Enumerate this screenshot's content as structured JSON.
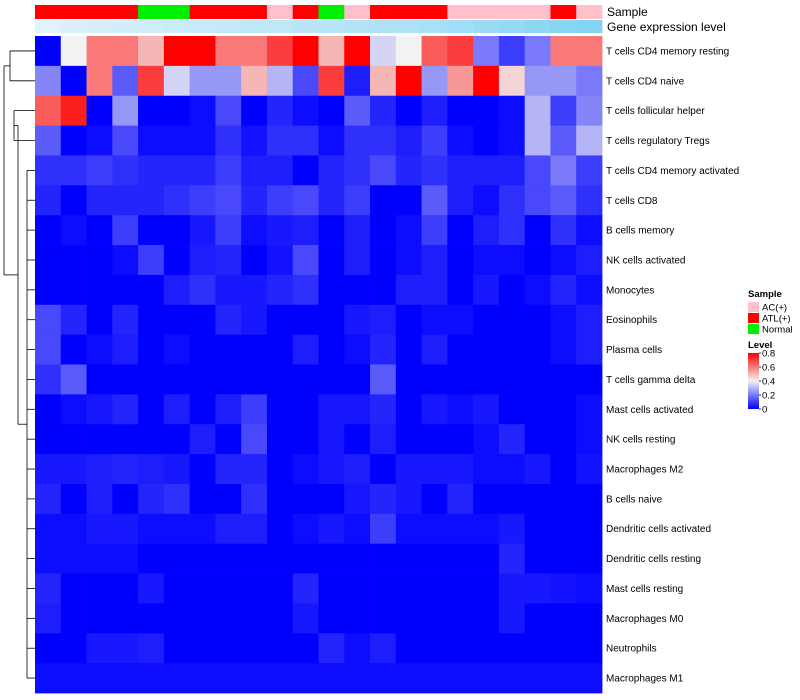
{
  "chart_data": {
    "type": "heatmap",
    "annotation_labels": {
      "sample": "Sample",
      "gene_expression": "Gene expression level"
    },
    "rows": [
      "T cells CD4 memory resting",
      "T cells CD4 naive",
      "T cells follicular helper",
      "T cells regulatory  Tregs",
      "T cells CD4 memory activated",
      "T cells CD8",
      "B cells memory",
      "NK cells activated",
      "Monocytes",
      "Eosinophils",
      "Plasma cells",
      "T cells gamma delta",
      "Mast cells activated",
      "NK cells resting",
      "Macrophages M2",
      "B cells naive",
      "Dendritic cells activated",
      "Dendritic cells resting",
      "Mast cells resting",
      "Macrophages M0",
      "Neutrophils",
      "Macrophages M1"
    ],
    "sample_groups": [
      "ATL(+)",
      "ATL(+)",
      "ATL(+)",
      "ATL(+)",
      "Normal",
      "Normal",
      "ATL(+)",
      "ATL(+)",
      "ATL(+)",
      "AC(+)",
      "ATL(+)",
      "Normal",
      "AC(+)",
      "ATL(+)",
      "ATL(+)",
      "ATL(+)",
      "AC(+)",
      "AC(+)",
      "AC(+)",
      "AC(+)",
      "ATL(+)",
      "AC(+)"
    ],
    "expression_annotation": [
      0.05,
      0.08,
      0.12,
      0.15,
      0.18,
      0.2,
      0.22,
      0.25,
      0.28,
      0.3,
      0.33,
      0.35,
      0.38,
      0.4,
      0.43,
      0.46,
      0.5,
      0.55,
      0.6,
      0.65,
      0.7,
      0.72
    ],
    "values": [
      [
        0.0,
        0.4,
        0.6,
        0.6,
        0.5,
        0.8,
        0.8,
        0.6,
        0.6,
        0.7,
        0.8,
        0.5,
        0.8,
        0.35,
        0.4,
        0.65,
        0.7,
        0.2,
        0.1,
        0.2,
        0.6,
        0.6
      ],
      [
        0.22,
        0.0,
        0.6,
        0.15,
        0.7,
        0.35,
        0.25,
        0.25,
        0.5,
        0.3,
        0.12,
        0.7,
        0.05,
        0.5,
        0.8,
        0.25,
        0.55,
        0.8,
        0.45,
        0.25,
        0.25,
        0.2
      ],
      [
        0.65,
        0.75,
        0.0,
        0.25,
        0.0,
        0.0,
        0.02,
        0.12,
        0.0,
        0.06,
        0.02,
        0.0,
        0.15,
        0.06,
        0.0,
        0.05,
        0.0,
        0.0,
        0.02,
        0.3,
        0.1,
        0.22
      ],
      [
        0.15,
        0.0,
        0.02,
        0.12,
        0.02,
        0.02,
        0.02,
        0.08,
        0.03,
        0.08,
        0.08,
        0.02,
        0.08,
        0.08,
        0.05,
        0.1,
        0.02,
        0.0,
        0.02,
        0.3,
        0.15,
        0.3
      ],
      [
        0.08,
        0.08,
        0.1,
        0.08,
        0.06,
        0.06,
        0.06,
        0.1,
        0.05,
        0.05,
        0.0,
        0.06,
        0.08,
        0.12,
        0.06,
        0.08,
        0.05,
        0.05,
        0.05,
        0.12,
        0.2,
        0.1
      ],
      [
        0.06,
        0.0,
        0.06,
        0.06,
        0.06,
        0.08,
        0.1,
        0.12,
        0.06,
        0.1,
        0.12,
        0.06,
        0.1,
        0.0,
        0.0,
        0.15,
        0.05,
        0.02,
        0.08,
        0.12,
        0.15,
        0.08
      ],
      [
        0.0,
        0.02,
        0.0,
        0.1,
        0.0,
        0.0,
        0.04,
        0.1,
        0.02,
        0.04,
        0.05,
        0.0,
        0.05,
        0.0,
        0.02,
        0.1,
        0.0,
        0.05,
        0.08,
        0.0,
        0.08,
        0.02
      ],
      [
        0.0,
        0.0,
        0.0,
        0.02,
        0.1,
        0.0,
        0.05,
        0.06,
        0.0,
        0.03,
        0.12,
        0.0,
        0.05,
        0.0,
        0.02,
        0.05,
        0.0,
        0.02,
        0.02,
        0.0,
        0.02,
        0.05
      ],
      [
        0.0,
        0.0,
        0.0,
        0.0,
        0.0,
        0.05,
        0.08,
        0.04,
        0.04,
        0.06,
        0.08,
        0.0,
        0.0,
        0.0,
        0.05,
        0.05,
        0.0,
        0.04,
        0.0,
        0.02,
        0.06,
        0.02
      ],
      [
        0.12,
        0.06,
        0.0,
        0.06,
        0.0,
        0.0,
        0.0,
        0.06,
        0.04,
        0.0,
        0.0,
        0.0,
        0.04,
        0.05,
        0.0,
        0.02,
        0.02,
        0.0,
        0.0,
        0.0,
        0.02,
        0.05
      ],
      [
        0.12,
        0.0,
        0.02,
        0.05,
        0.0,
        0.02,
        0.0,
        0.0,
        0.0,
        0.0,
        0.05,
        0.0,
        0.02,
        0.06,
        0.0,
        0.05,
        0.0,
        0.0,
        0.0,
        0.0,
        0.02,
        0.05
      ],
      [
        0.08,
        0.15,
        0.0,
        0.0,
        0.0,
        0.0,
        0.0,
        0.0,
        0.0,
        0.0,
        0.0,
        0.0,
        0.0,
        0.15,
        0.0,
        0.0,
        0.0,
        0.0,
        0.0,
        0.0,
        0.0,
        0.0
      ],
      [
        0.0,
        0.02,
        0.04,
        0.06,
        0.0,
        0.05,
        0.0,
        0.05,
        0.1,
        0.0,
        0.0,
        0.04,
        0.04,
        0.06,
        0.0,
        0.04,
        0.02,
        0.04,
        0.0,
        0.0,
        0.0,
        0.02
      ],
      [
        0.0,
        0.0,
        0.0,
        0.0,
        0.0,
        0.0,
        0.05,
        0.0,
        0.12,
        0.0,
        0.0,
        0.04,
        0.0,
        0.05,
        0.0,
        0.0,
        0.0,
        0.02,
        0.06,
        0.0,
        0.0,
        0.02
      ],
      [
        0.04,
        0.04,
        0.05,
        0.06,
        0.05,
        0.04,
        0.0,
        0.06,
        0.06,
        0.0,
        0.02,
        0.04,
        0.05,
        0.0,
        0.04,
        0.04,
        0.04,
        0.02,
        0.02,
        0.04,
        0.0,
        0.03
      ],
      [
        0.06,
        0.0,
        0.05,
        0.0,
        0.06,
        0.08,
        0.0,
        0.0,
        0.08,
        0.0,
        0.0,
        0.0,
        0.04,
        0.06,
        0.04,
        0.0,
        0.06,
        0.0,
        0.0,
        0.0,
        0.0,
        0.0
      ],
      [
        0.02,
        0.02,
        0.04,
        0.04,
        0.02,
        0.02,
        0.02,
        0.05,
        0.05,
        0.0,
        0.02,
        0.04,
        0.02,
        0.1,
        0.02,
        0.02,
        0.02,
        0.02,
        0.04,
        0.0,
        0.0,
        0.0
      ],
      [
        0.02,
        0.02,
        0.02,
        0.02,
        0.0,
        0.0,
        0.0,
        0.0,
        0.0,
        0.0,
        0.0,
        0.0,
        0.0,
        0.0,
        0.0,
        0.0,
        0.0,
        0.0,
        0.06,
        0.0,
        0.0,
        0.0
      ],
      [
        0.06,
        0.0,
        0.0,
        0.0,
        0.04,
        0.0,
        0.0,
        0.0,
        0.0,
        0.0,
        0.06,
        0.0,
        0.0,
        0.0,
        0.0,
        0.0,
        0.0,
        0.0,
        0.04,
        0.04,
        0.03,
        0.02
      ],
      [
        0.05,
        0.0,
        0.0,
        0.0,
        0.0,
        0.0,
        0.0,
        0.0,
        0.0,
        0.0,
        0.04,
        0.0,
        0.0,
        0.0,
        0.0,
        0.0,
        0.0,
        0.0,
        0.04,
        0.0,
        0.0,
        0.0
      ],
      [
        0.0,
        0.0,
        0.04,
        0.04,
        0.05,
        0.0,
        0.0,
        0.0,
        0.0,
        0.0,
        0.0,
        0.06,
        0.02,
        0.05,
        0.0,
        0.0,
        0.0,
        0.0,
        0.0,
        0.0,
        0.0,
        0.0
      ],
      [
        0.02,
        0.02,
        0.02,
        0.02,
        0.02,
        0.02,
        0.02,
        0.02,
        0.02,
        0.02,
        0.02,
        0.02,
        0.02,
        0.02,
        0.02,
        0.02,
        0.02,
        0.02,
        0.02,
        0.02,
        0.02,
        0.02
      ]
    ],
    "scale": {
      "min": 0,
      "max": 0.8
    },
    "legend": {
      "sample_title": "Sample",
      "sample_items": [
        {
          "label": "AC(+)",
          "color": "#ffc0cb"
        },
        {
          "label": "ATL(+)",
          "color": "#ff0000"
        },
        {
          "label": "Normal",
          "color": "#00ee00"
        }
      ],
      "level_title": "Level",
      "level_ticks": [
        "0.8",
        "0.6",
        "0.4",
        "0.2",
        "0"
      ],
      "level_tick_values": [
        0.8,
        0.6,
        0.4,
        0.2,
        0
      ]
    },
    "colors": {
      "low": "#0000ff",
      "mid": "#f2f2f2",
      "high": "#ff0000",
      "annotation_low": "#e8f4fa",
      "annotation_high": "#5cc8f0"
    }
  }
}
